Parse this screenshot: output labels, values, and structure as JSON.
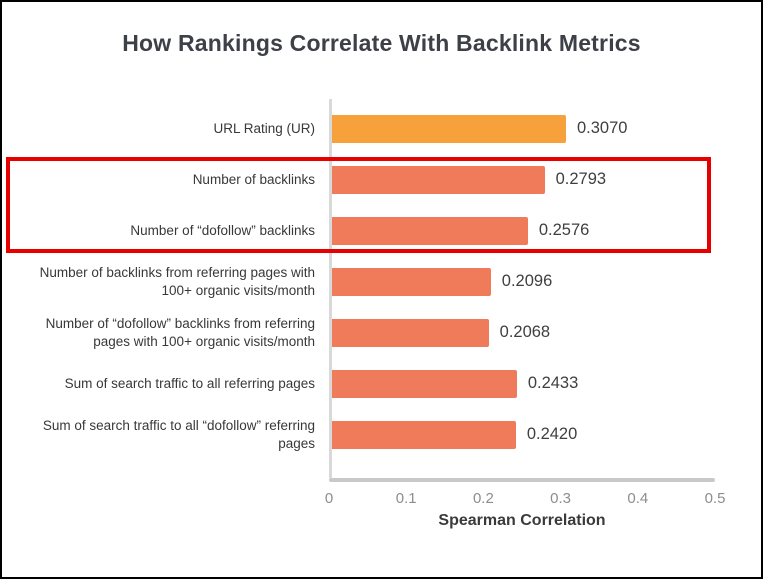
{
  "colors": {
    "first_bar": "#F6A13B",
    "bar": "#EF7B5B",
    "highlight_red": "#E60000",
    "axis_line": "#C9C9C9",
    "tick_text": "#8D8D8D",
    "title_text": "#3E4047"
  },
  "highlight": {
    "categories": [
      "Number of backlinks",
      "Number of “dofollow” backlinks"
    ]
  },
  "chart_data": {
    "type": "bar",
    "orientation": "horizontal",
    "title": "How Rankings Correlate With Backlink Metrics",
    "xlabel": "Spearman Correlation",
    "ylabel": "",
    "xlim": [
      0,
      0.5
    ],
    "xticks": [
      0,
      0.1,
      0.2,
      0.3,
      0.4,
      0.5
    ],
    "xtick_labels": [
      "0",
      "0.1",
      "0.2",
      "0.3",
      "0.4",
      "0.5"
    ],
    "grid": false,
    "legend": false,
    "categories": [
      "URL Rating (UR)",
      "Number of backlinks",
      "Number of “dofollow” backlinks",
      "Number of backlinks from referring pages with 100+ organic visits/month",
      "Number of “dofollow” backlinks from referring pages with 100+ organic visits/month",
      "Sum of search traffic to all referring pages",
      "Sum of search traffic to all “dofollow” referring pages"
    ],
    "values": [
      0.307,
      0.2793,
      0.2576,
      0.2096,
      0.2068,
      0.2433,
      0.242
    ],
    "value_labels": [
      "0.3070",
      "0.2793",
      "0.2576",
      "0.2096",
      "0.2068",
      "0.2433",
      "0.2420"
    ],
    "bar_colors": [
      "#F6A13B",
      "#EF7B5B",
      "#EF7B5B",
      "#EF7B5B",
      "#EF7B5B",
      "#EF7B5B",
      "#EF7B5B"
    ]
  }
}
